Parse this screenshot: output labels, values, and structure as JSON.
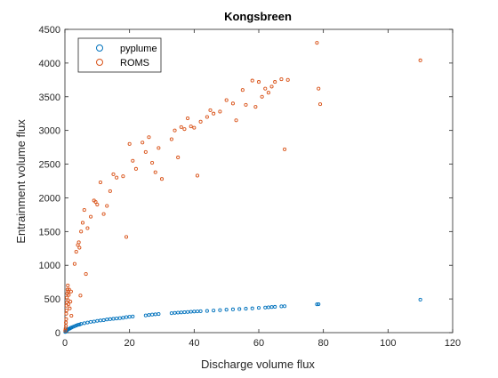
{
  "chart_data": {
    "type": "scatter",
    "title": "Kongsbreen",
    "xlabel": "Discharge volume flux",
    "ylabel": "Entrainment volume flux",
    "xlim": [
      0,
      120
    ],
    "ylim": [
      0,
      4500
    ],
    "xticks": [
      0,
      20,
      40,
      60,
      80,
      100,
      120
    ],
    "yticks": [
      0,
      500,
      1000,
      1500,
      2000,
      2500,
      3000,
      3500,
      4000,
      4500
    ],
    "grid": false,
    "legend": "top-left",
    "series": [
      {
        "name": "pyplume",
        "color": "#0072BD",
        "points": [
          [
            0.1,
            10
          ],
          [
            0.2,
            15
          ],
          [
            0.3,
            20
          ],
          [
            0.4,
            25
          ],
          [
            0.5,
            30
          ],
          [
            0.6,
            35
          ],
          [
            0.7,
            40
          ],
          [
            0.8,
            45
          ],
          [
            1,
            50
          ],
          [
            1.2,
            55
          ],
          [
            1.5,
            60
          ],
          [
            1.8,
            70
          ],
          [
            2,
            75
          ],
          [
            2.5,
            85
          ],
          [
            3,
            95
          ],
          [
            3.5,
            105
          ],
          [
            4,
            115
          ],
          [
            4.5,
            120
          ],
          [
            5,
            130
          ],
          [
            6,
            140
          ],
          [
            7,
            150
          ],
          [
            8,
            160
          ],
          [
            9,
            165
          ],
          [
            10,
            175
          ],
          [
            11,
            180
          ],
          [
            12,
            185
          ],
          [
            13,
            195
          ],
          [
            14,
            200
          ],
          [
            15,
            205
          ],
          [
            16,
            210
          ],
          [
            17,
            215
          ],
          [
            18,
            220
          ],
          [
            19,
            230
          ],
          [
            20,
            235
          ],
          [
            21,
            240
          ],
          [
            25,
            255
          ],
          [
            26,
            262
          ],
          [
            27,
            268
          ],
          [
            28,
            272
          ],
          [
            29,
            276
          ],
          [
            33,
            288
          ],
          [
            34,
            293
          ],
          [
            35,
            297
          ],
          [
            36,
            300
          ],
          [
            37,
            303
          ],
          [
            38,
            306
          ],
          [
            39,
            310
          ],
          [
            40,
            313
          ],
          [
            41,
            315
          ],
          [
            42,
            318
          ],
          [
            44,
            322
          ],
          [
            46,
            328
          ],
          [
            48,
            334
          ],
          [
            50,
            340
          ],
          [
            52,
            345
          ],
          [
            54,
            350
          ],
          [
            56,
            355
          ],
          [
            58,
            360
          ],
          [
            60,
            368
          ],
          [
            62,
            372
          ],
          [
            63,
            376
          ],
          [
            64,
            380
          ],
          [
            65,
            383
          ],
          [
            67,
            390
          ],
          [
            68,
            392
          ],
          [
            78,
            420
          ],
          [
            78.5,
            422
          ],
          [
            110,
            490
          ]
        ]
      },
      {
        "name": "ROMS",
        "color": "#D95319",
        "points": [
          [
            0.1,
            30
          ],
          [
            0.2,
            60
          ],
          [
            0.3,
            100
          ],
          [
            0.3,
            150
          ],
          [
            0.4,
            200
          ],
          [
            0.4,
            280
          ],
          [
            0.5,
            330
          ],
          [
            0.5,
            400
          ],
          [
            0.6,
            450
          ],
          [
            0.6,
            520
          ],
          [
            0.7,
            580
          ],
          [
            0.8,
            640
          ],
          [
            0.9,
            700
          ],
          [
            1,
            610
          ],
          [
            1,
            480
          ],
          [
            1.1,
            420
          ],
          [
            1.2,
            560
          ],
          [
            1.3,
            640
          ],
          [
            1.5,
            360
          ],
          [
            1.7,
            460
          ],
          [
            1.9,
            610
          ],
          [
            2,
            250
          ],
          [
            3,
            1020
          ],
          [
            3.5,
            1200
          ],
          [
            4,
            1300
          ],
          [
            4.3,
            1340
          ],
          [
            4.5,
            1260
          ],
          [
            4.8,
            550
          ],
          [
            5,
            1500
          ],
          [
            5.5,
            1630
          ],
          [
            6,
            1820
          ],
          [
            6.5,
            870
          ],
          [
            7,
            1550
          ],
          [
            8,
            1720
          ],
          [
            9,
            1960
          ],
          [
            9.5,
            1940
          ],
          [
            10,
            1900
          ],
          [
            11,
            2230
          ],
          [
            12,
            1760
          ],
          [
            13,
            1880
          ],
          [
            14,
            2100
          ],
          [
            15,
            2350
          ],
          [
            16,
            2300
          ],
          [
            18,
            2320
          ],
          [
            19,
            1420
          ],
          [
            20,
            2800
          ],
          [
            21,
            2550
          ],
          [
            22,
            2430
          ],
          [
            24,
            2820
          ],
          [
            25,
            2680
          ],
          [
            26,
            2900
          ],
          [
            27,
            2520
          ],
          [
            28,
            2380
          ],
          [
            29,
            2740
          ],
          [
            30,
            2280
          ],
          [
            33,
            2870
          ],
          [
            34,
            3000
          ],
          [
            35,
            2600
          ],
          [
            36,
            3050
          ],
          [
            37,
            3020
          ],
          [
            38,
            3180
          ],
          [
            39,
            3060
          ],
          [
            40,
            3040
          ],
          [
            41,
            2330
          ],
          [
            42,
            3130
          ],
          [
            44,
            3200
          ],
          [
            45,
            3300
          ],
          [
            46,
            3250
          ],
          [
            48,
            3280
          ],
          [
            50,
            3450
          ],
          [
            52,
            3400
          ],
          [
            53,
            3150
          ],
          [
            55,
            3600
          ],
          [
            56,
            3380
          ],
          [
            58,
            3740
          ],
          [
            59,
            3350
          ],
          [
            60,
            3720
          ],
          [
            61,
            3500
          ],
          [
            62,
            3620
          ],
          [
            63,
            3560
          ],
          [
            64,
            3650
          ],
          [
            65,
            3720
          ],
          [
            67,
            3760
          ],
          [
            68,
            2720
          ],
          [
            69,
            3750
          ],
          [
            78,
            4300
          ],
          [
            78.5,
            3620
          ],
          [
            79,
            3390
          ],
          [
            110,
            4040
          ]
        ]
      }
    ]
  }
}
